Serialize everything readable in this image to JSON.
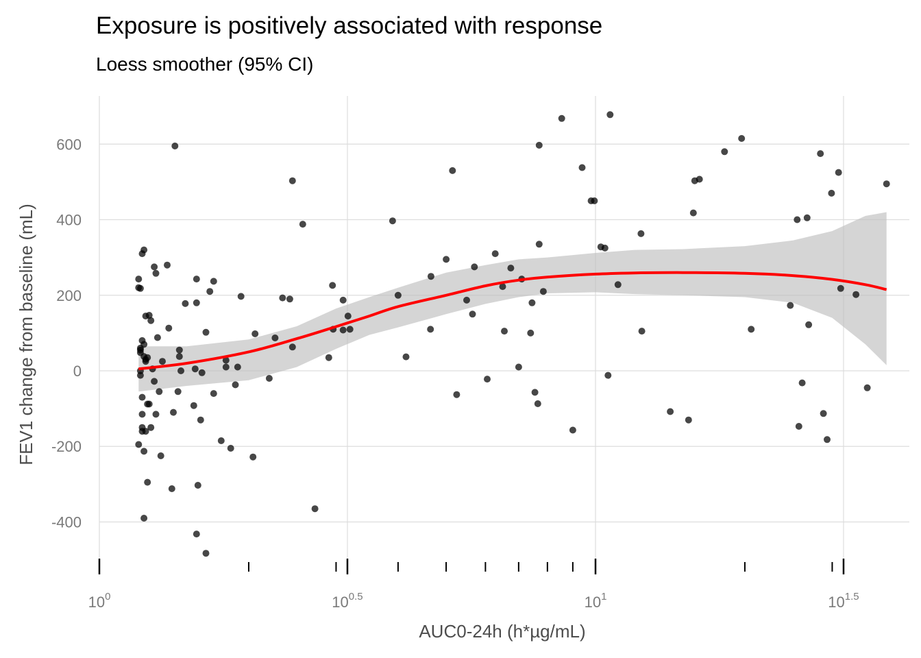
{
  "chart_data": {
    "type": "scatter",
    "title": "Exposure is positively associated with response",
    "subtitle": "Loess smoother (95% CI)",
    "xlabel": "AUC0-24h (h*µg/mL)",
    "ylabel": "FEV1 change from baseline (mL)",
    "x_scale": "log10",
    "xlim": [
      1,
      40
    ],
    "ylim": [
      -520,
      730
    ],
    "x_ticks": [
      {
        "base": "10",
        "exp": "0",
        "value": 1
      },
      {
        "base": "10",
        "exp": "0.5",
        "value": 3.162
      },
      {
        "base": "10",
        "exp": "1",
        "value": 10
      },
      {
        "base": "10",
        "exp": "1.5",
        "value": 31.62
      }
    ],
    "x_minor_ticks": [
      2,
      3,
      4,
      5,
      6,
      7,
      8,
      9,
      20,
      30
    ],
    "y_ticks": [
      -400,
      -200,
      0,
      200,
      400,
      600
    ],
    "grid": true,
    "point_color": "#000000",
    "smooth_color": "#ff0000",
    "ribbon_color": "#bfbfbf",
    "points": [
      [
        1.2,
        -195
      ],
      [
        1.2,
        243
      ],
      [
        1.2,
        220
      ],
      [
        1.21,
        218
      ],
      [
        1.21,
        -12
      ],
      [
        1.21,
        0
      ],
      [
        1.21,
        48
      ],
      [
        1.21,
        55
      ],
      [
        1.21,
        60
      ],
      [
        1.22,
        80
      ],
      [
        1.22,
        -70
      ],
      [
        1.22,
        -115
      ],
      [
        1.22,
        -150
      ],
      [
        1.22,
        -160
      ],
      [
        1.22,
        310
      ],
      [
        1.23,
        320
      ],
      [
        1.23,
        -390
      ],
      [
        1.23,
        70
      ],
      [
        1.23,
        38
      ],
      [
        1.23,
        -213
      ],
      [
        1.24,
        145
      ],
      [
        1.24,
        30
      ],
      [
        1.24,
        25
      ],
      [
        1.24,
        -160
      ],
      [
        1.25,
        -88
      ],
      [
        1.25,
        -295
      ],
      [
        1.25,
        35
      ],
      [
        1.26,
        -88
      ],
      [
        1.26,
        147
      ],
      [
        1.27,
        133
      ],
      [
        1.27,
        -150
      ],
      [
        1.28,
        5
      ],
      [
        1.29,
        -28
      ],
      [
        1.29,
        275
      ],
      [
        1.3,
        258
      ],
      [
        1.3,
        -115
      ],
      [
        1.31,
        88
      ],
      [
        1.32,
        -55
      ],
      [
        1.33,
        -225
      ],
      [
        1.34,
        25
      ],
      [
        1.37,
        280
      ],
      [
        1.38,
        113
      ],
      [
        1.4,
        -312
      ],
      [
        1.41,
        -110
      ],
      [
        1.42,
        595
      ],
      [
        1.44,
        -55
      ],
      [
        1.45,
        55
      ],
      [
        1.45,
        38
      ],
      [
        1.46,
        0
      ],
      [
        1.49,
        178
      ],
      [
        1.55,
        -92
      ],
      [
        1.56,
        5
      ],
      [
        1.57,
        180
      ],
      [
        1.57,
        243
      ],
      [
        1.58,
        -303
      ],
      [
        1.57,
        -432
      ],
      [
        1.6,
        -130
      ],
      [
        1.61,
        -5
      ],
      [
        1.64,
        102
      ],
      [
        1.64,
        -483
      ],
      [
        1.67,
        210
      ],
      [
        1.7,
        237
      ],
      [
        1.7,
        -60
      ],
      [
        1.76,
        -185
      ],
      [
        1.8,
        10
      ],
      [
        1.8,
        28
      ],
      [
        1.84,
        -205
      ],
      [
        1.88,
        -37
      ],
      [
        1.9,
        10
      ],
      [
        1.93,
        197
      ],
      [
        2.04,
        -228
      ],
      [
        2.06,
        98
      ],
      [
        2.2,
        -20
      ],
      [
        2.26,
        87
      ],
      [
        2.34,
        193
      ],
      [
        2.42,
        190
      ],
      [
        2.45,
        63
      ],
      [
        2.45,
        503
      ],
      [
        2.57,
        388
      ],
      [
        2.72,
        -365
      ],
      [
        2.9,
        35
      ],
      [
        2.95,
        226
      ],
      [
        2.96,
        110
      ],
      [
        3.1,
        108
      ],
      [
        3.1,
        187
      ],
      [
        3.17,
        145
      ],
      [
        3.2,
        110
      ],
      [
        3.9,
        397
      ],
      [
        4.0,
        200
      ],
      [
        4.15,
        37
      ],
      [
        4.65,
        110
      ],
      [
        4.66,
        250
      ],
      [
        5.0,
        295
      ],
      [
        5.15,
        530
      ],
      [
        5.25,
        -63
      ],
      [
        5.5,
        187
      ],
      [
        5.65,
        150
      ],
      [
        5.7,
        275
      ],
      [
        6.05,
        -22
      ],
      [
        6.28,
        310
      ],
      [
        6.5,
        223
      ],
      [
        6.55,
        105
      ],
      [
        6.75,
        272
      ],
      [
        7.0,
        10
      ],
      [
        7.1,
        243
      ],
      [
        7.4,
        100
      ],
      [
        7.45,
        180
      ],
      [
        7.55,
        -57
      ],
      [
        7.65,
        -87
      ],
      [
        7.7,
        335
      ],
      [
        7.7,
        597
      ],
      [
        7.85,
        210
      ],
      [
        8.55,
        668
      ],
      [
        9.0,
        -157
      ],
      [
        9.4,
        538
      ],
      [
        9.8,
        450
      ],
      [
        9.95,
        450
      ],
      [
        10.25,
        328
      ],
      [
        10.45,
        325
      ],
      [
        10.6,
        -12
      ],
      [
        10.7,
        678
      ],
      [
        11.1,
        228
      ],
      [
        12.35,
        363
      ],
      [
        12.4,
        105
      ],
      [
        14.15,
        -108
      ],
      [
        15.4,
        -130
      ],
      [
        15.75,
        418
      ],
      [
        15.85,
        503
      ],
      [
        16.2,
        507
      ],
      [
        18.2,
        580
      ],
      [
        19.7,
        615
      ],
      [
        20.6,
        110
      ],
      [
        24.7,
        173
      ],
      [
        25.5,
        400
      ],
      [
        25.7,
        -147
      ],
      [
        26.1,
        -32
      ],
      [
        26.7,
        405
      ],
      [
        26.9,
        122
      ],
      [
        28.4,
        575
      ],
      [
        28.8,
        -113
      ],
      [
        29.3,
        -182
      ],
      [
        29.9,
        470
      ],
      [
        30.9,
        525
      ],
      [
        31.2,
        218
      ],
      [
        33.5,
        202
      ],
      [
        35.3,
        -45
      ],
      [
        38.6,
        495
      ]
    ],
    "smooth": {
      "x": [
        1.2,
        1.5,
        2.0,
        2.5,
        3.0,
        3.5,
        4.0,
        5.0,
        6.0,
        7.0,
        8.0,
        10.0,
        12.0,
        15.0,
        20.0,
        25.0,
        30.0,
        35.0,
        38.6
      ],
      "y": [
        5,
        20,
        50,
        85,
        117,
        145,
        170,
        200,
        225,
        240,
        248,
        256,
        259,
        260,
        258,
        252,
        242,
        228,
        215
      ],
      "lower": [
        -55,
        -40,
        -25,
        10,
        58,
        95,
        115,
        150,
        177,
        195,
        205,
        208,
        203,
        200,
        195,
        180,
        140,
        70,
        15
      ],
      "upper": [
        65,
        65,
        83,
        118,
        165,
        195,
        220,
        260,
        280,
        295,
        300,
        312,
        320,
        322,
        330,
        345,
        370,
        410,
        420
      ]
    }
  }
}
